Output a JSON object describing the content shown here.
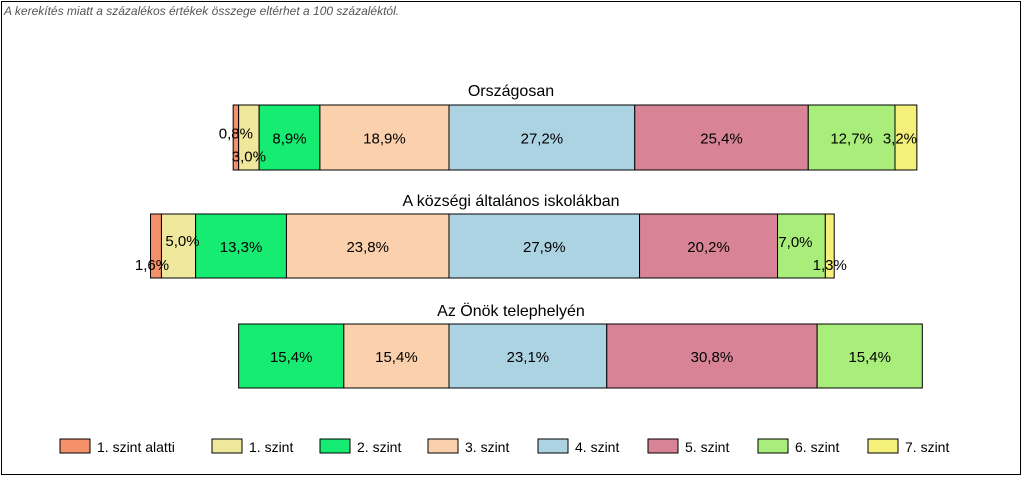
{
  "note": "A kerekítés miatt a  százalékos értékek összege eltérhet a 100 százaléktól.",
  "chart_data": {
    "type": "bar",
    "orientation": "horizontal-stacked-diverging",
    "series": [
      {
        "name": "1. szint alatti",
        "color": "#F4916A"
      },
      {
        "name": "1. szint",
        "color": "#EFE79B"
      },
      {
        "name": "2. szint",
        "color": "#16EB72"
      },
      {
        "name": "3. szint",
        "color": "#FBD0AD"
      },
      {
        "name": "4. szint",
        "color": "#ABD3E2"
      },
      {
        "name": "5. szint",
        "color": "#D98496"
      },
      {
        "name": "6. szint",
        "color": "#A9EE7B"
      },
      {
        "name": "7. szint",
        "color": "#F4F07A"
      }
    ],
    "groups": [
      {
        "title": "Országosan",
        "values": [
          0.8,
          3.0,
          8.9,
          18.9,
          27.2,
          25.4,
          12.7,
          3.2
        ],
        "labels": [
          "0,8%",
          "3,0%",
          "8,9%",
          "18,9%",
          "27,2%",
          "25,4%",
          "12,7%",
          "3,2%"
        ]
      },
      {
        "title": "A községi általános iskolákban",
        "values": [
          1.6,
          5.0,
          13.3,
          23.8,
          27.9,
          20.2,
          7.0,
          1.3
        ],
        "labels": [
          "1,6%",
          "5,0%",
          "13,3%",
          "23,8%",
          "27,9%",
          "20,2%",
          "7,0%",
          "1,3%"
        ]
      },
      {
        "title": "Az Önök telephelyén",
        "values": [
          0,
          0,
          15.4,
          15.4,
          23.1,
          30.8,
          15.4,
          0
        ],
        "labels": [
          "",
          "",
          "15,4%",
          "15,4%",
          "23,1%",
          "30,8%",
          "15,4%",
          ""
        ]
      }
    ],
    "legend_position": "bottom"
  }
}
